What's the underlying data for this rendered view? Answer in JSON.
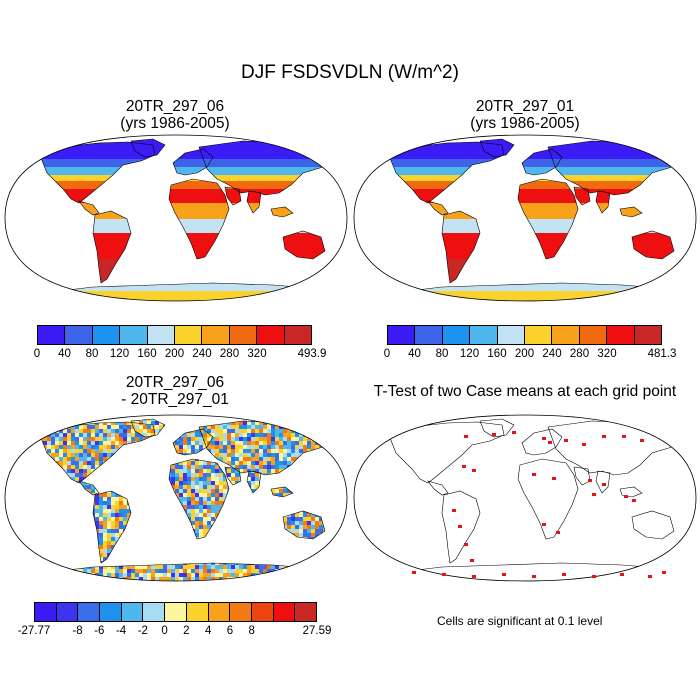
{
  "title": "DJF FSDSVDLN (W/m^2)",
  "panels": [
    {
      "id": "case1",
      "title_line1": "20TR_297_06",
      "title_line2": "(yrs 1986-2005)"
    },
    {
      "id": "case2",
      "title_line1": "20TR_297_01",
      "title_line2": "(yrs 1986-2005)"
    },
    {
      "id": "diff",
      "title_line1": "20TR_297_06",
      "title_line2": "- 20TR_297_01"
    },
    {
      "id": "ttest",
      "title_line1": "T-Test of two Case means at each grid point",
      "title_line2": ""
    }
  ],
  "colorbars": {
    "case1": {
      "colors": [
        "#3b1cf6",
        "#3d64e8",
        "#1d93ef",
        "#4fb7ee",
        "#c3e3f4",
        "#fbd12b",
        "#f8a21c",
        "#ef6a10",
        "#ee1010",
        "#c92626"
      ],
      "labels": [
        "0",
        "40",
        "80",
        "120",
        "160",
        "200",
        "240",
        "280",
        "320",
        "493.9"
      ]
    },
    "case2": {
      "colors": [
        "#3b1cf6",
        "#3d64e8",
        "#1d93ef",
        "#4fb7ee",
        "#c3e3f4",
        "#fbd12b",
        "#f8a21c",
        "#ef6a10",
        "#ee1010",
        "#c92626"
      ],
      "labels": [
        "0",
        "40",
        "80",
        "120",
        "160",
        "200",
        "240",
        "280",
        "320",
        "481.3"
      ]
    },
    "diff": {
      "colors": [
        "#3b1cf6",
        "#3d34ef",
        "#3a6de8",
        "#1d93ef",
        "#4fb7ee",
        "#a9dcf2",
        "#fdf59b",
        "#fbd12b",
        "#f8a21c",
        "#f27a14",
        "#ee4410",
        "#ee1010",
        "#c92626"
      ],
      "labels": [
        "-27.77",
        "-8",
        "-6",
        "-4",
        "-2",
        "0",
        "2",
        "4",
        "6",
        "8",
        "27.59"
      ]
    }
  },
  "significance_note": "Cells are significant at 0.1 level",
  "colors": {
    "ocean": "#ffffff",
    "coastline": "#000000",
    "significant": "#e0141a"
  }
}
